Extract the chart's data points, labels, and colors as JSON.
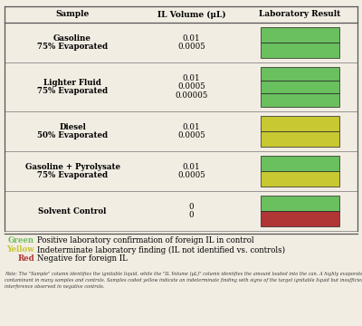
{
  "headers": [
    "Sample",
    "IL Volume (μL)",
    "Laboratory Result"
  ],
  "rows": [
    {
      "sample": [
        "Gasoline",
        "75% Evaporated"
      ],
      "volumes": [
        "0.01",
        "0.0005"
      ],
      "colors": [
        "#6abf5e",
        "#6abf5e"
      ]
    },
    {
      "sample": [
        "Lighter Fluid",
        "75% Evaporated"
      ],
      "volumes": [
        "0.01",
        "0.0005",
        "0.00005"
      ],
      "colors": [
        "#6abf5e",
        "#6abf5e",
        "#6abf5e"
      ]
    },
    {
      "sample": [
        "Diesel",
        "50% Evaporated"
      ],
      "volumes": [
        "0.01",
        "0.0005"
      ],
      "colors": [
        "#c8c832",
        "#c8c832"
      ]
    },
    {
      "sample": [
        "Gasoline + Pyrolysate",
        "75% Evaporated"
      ],
      "volumes": [
        "0.01",
        "0.0005"
      ],
      "colors": [
        "#6abf5e",
        "#c8c832"
      ]
    },
    {
      "sample": [
        "Solvent Control",
        ""
      ],
      "volumes": [
        "0",
        "0"
      ],
      "colors": [
        "#6abf5e",
        "#b03535"
      ]
    }
  ],
  "legend": [
    {
      "color": "#6abf5e",
      "label": "Green",
      "desc": "Positive laboratory confirmation of foreign IL in control"
    },
    {
      "color": "#c8c832",
      "label": "Yellow",
      "desc": "Indeterminate laboratory finding (IL not identified vs. controls)"
    },
    {
      "color": "#b03535",
      "label": "Red",
      "desc": "Negative for foreign IL"
    }
  ],
  "footnote": "Note: The \"Sample\" column identifies the ignitable liquid, while the \"IL Volume (μL)\" column identifies the amount loaded into the can. A highly evaporated gasoline residue was present as a contaminant in many samples and controls. Samples coded yellow indicate an indeterminate finding with signs of the target ignitable liquid but insufficient to differentiate from background interference observed in negative controls.",
  "bg_color": "#f2ede3",
  "border_color": "#888888",
  "header_line_color": "#555555"
}
